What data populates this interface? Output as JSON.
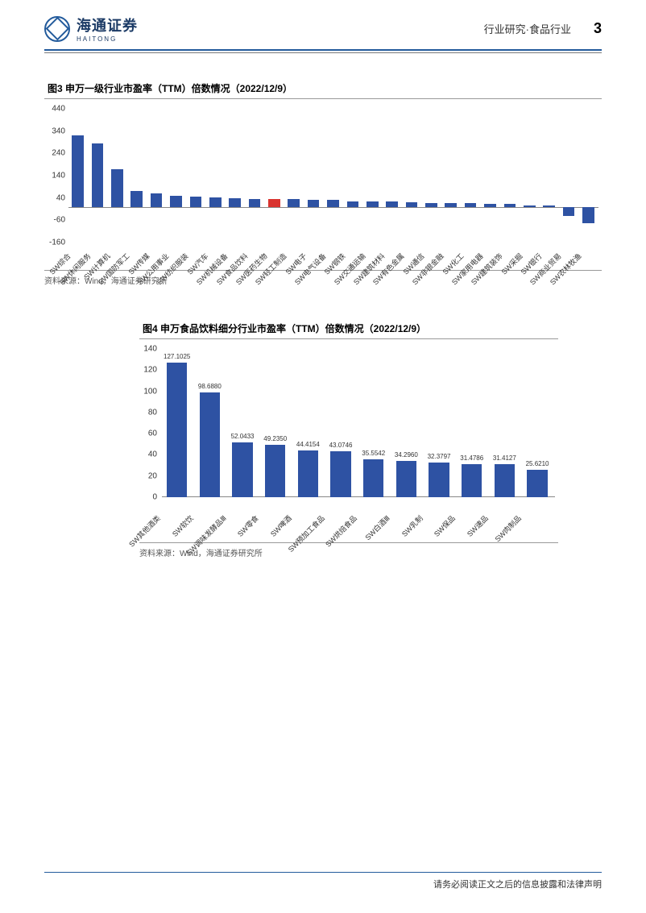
{
  "header": {
    "company_cn": "海通证券",
    "company_en": "HAITONG",
    "category": "行业研究·食品行业",
    "page_number": "3"
  },
  "fig3": {
    "title": "图3   申万一级行业市盈率（TTM）倍数情况（2022/12/9）",
    "source": "资料来源：Wind，海通证券研究所",
    "type": "bar",
    "ylim": [
      -160,
      440
    ],
    "ytick_step": 100,
    "yticks": [
      -160,
      -60,
      40,
      140,
      240,
      340,
      440
    ],
    "background_color": "#ffffff",
    "bar_color_default": "#2e52a3",
    "bar_color_highlight": "#d9332f",
    "highlight_index": 10,
    "categories": [
      "SW综合",
      "SW休闲服务",
      "SW计算机",
      "SW国防军工",
      "SW传媒",
      "SW公用事业",
      "SW纺织服装",
      "SW汽车",
      "SW机械设备",
      "SW食品饮料",
      "SW医药生物",
      "SW轻工制造",
      "SW电子",
      "SW电气设备",
      "SW钢铁",
      "SW交通运输",
      "SW建筑材料",
      "SW有色金属",
      "SW通信",
      "SW非银金融",
      "SW化工",
      "SW家用电器",
      "SW建筑装饰",
      "SW采掘",
      "SW银行",
      "SW商业贸易",
      "SW农林牧渔"
    ],
    "values": [
      320,
      285,
      170,
      70,
      60,
      50,
      45,
      42,
      38,
      36,
      35,
      34,
      33,
      32,
      25,
      24,
      23,
      20,
      18,
      17,
      16,
      15,
      12,
      8,
      5,
      -40,
      -75
    ],
    "label_fontsize": 9
  },
  "fig4": {
    "title": "图4   申万食品饮料细分行业市盈率（TTM）倍数情况（2022/12/9）",
    "source": "资料来源：Wind，海通证券研究所",
    "type": "bar",
    "ylim": [
      0,
      140
    ],
    "ytick_step": 20,
    "yticks": [
      0,
      20,
      40,
      60,
      80,
      100,
      120,
      140
    ],
    "background_color": "#ffffff",
    "bar_color": "#2e52a3",
    "categories": [
      "SW其他酒类",
      "SW软饮",
      "SW调味发酵品Ⅲ",
      "SW零食",
      "SW啤酒",
      "SW预加工食品",
      "SW烘焙食品",
      "SW白酒Ⅲ",
      "SW乳制",
      "SW保品",
      "SW速品",
      "SW肉制品"
    ],
    "values": [
      127.1025,
      98.688,
      52.0433,
      49.235,
      44.4154,
      43.0746,
      35.5542,
      34.296,
      32.3797,
      31.4786,
      31.4127,
      25.621
    ],
    "value_labels": [
      "127.1025",
      "98.6880",
      "52.0433",
      "49.2350",
      "44.4154",
      "43.0746",
      "35.5542",
      "34.2960",
      "32.3797",
      "31.4786",
      "31.4127",
      "25.6210"
    ],
    "label_fontsize": 9
  },
  "footer": {
    "disclaimer": "请务必阅读正文之后的信息披露和法律声明"
  }
}
